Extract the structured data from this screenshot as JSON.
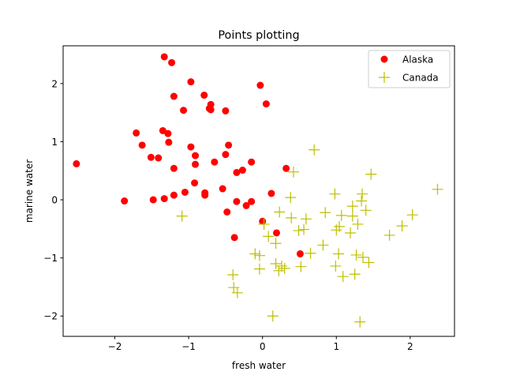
{
  "chart_data": {
    "type": "scatter",
    "title": "Points plotting",
    "xlabel": "fresh water",
    "ylabel": "marine water",
    "xlim": [
      -2.7,
      2.6
    ],
    "ylim": [
      -2.35,
      2.65
    ],
    "xticks": [
      -2,
      -1,
      0,
      1,
      2
    ],
    "yticks": [
      -2,
      -1,
      0,
      1,
      2
    ],
    "grid": false,
    "legend_position": "top-right",
    "series": [
      {
        "name": "Alaska",
        "marker": "circle",
        "color": "#ff0000",
        "points": [
          [
            -2.52,
            0.62
          ],
          [
            -1.87,
            -0.02
          ],
          [
            -1.71,
            1.15
          ],
          [
            -1.63,
            0.94
          ],
          [
            -1.51,
            0.73
          ],
          [
            -1.48,
            0.0
          ],
          [
            -1.41,
            0.72
          ],
          [
            -1.35,
            1.19
          ],
          [
            -1.33,
            2.46
          ],
          [
            -1.33,
            0.02
          ],
          [
            -1.28,
            1.14
          ],
          [
            -1.27,
            0.99
          ],
          [
            -1.23,
            2.36
          ],
          [
            -1.2,
            0.54
          ],
          [
            -1.2,
            1.78
          ],
          [
            -1.2,
            0.08
          ],
          [
            -1.07,
            1.54
          ],
          [
            -1.05,
            0.13
          ],
          [
            -0.97,
            2.03
          ],
          [
            -0.97,
            0.91
          ],
          [
            -0.92,
            0.29
          ],
          [
            -0.91,
            0.76
          ],
          [
            -0.91,
            0.61
          ],
          [
            -0.79,
            1.8
          ],
          [
            -0.78,
            0.12
          ],
          [
            -0.78,
            0.08
          ],
          [
            -0.72,
            1.57
          ],
          [
            -0.7,
            1.64
          ],
          [
            -0.7,
            1.55
          ],
          [
            -0.65,
            0.65
          ],
          [
            -0.54,
            0.19
          ],
          [
            -0.5,
            1.53
          ],
          [
            -0.5,
            0.78
          ],
          [
            -0.48,
            -0.21
          ],
          [
            -0.46,
            0.94
          ],
          [
            -0.38,
            -0.65
          ],
          [
            -0.35,
            0.47
          ],
          [
            -0.35,
            -0.03
          ],
          [
            -0.27,
            0.51
          ],
          [
            -0.22,
            -0.1
          ],
          [
            -0.15,
            0.65
          ],
          [
            -0.15,
            -0.03
          ],
          [
            -0.03,
            1.97
          ],
          [
            0.0,
            -0.37
          ],
          [
            0.05,
            1.65
          ],
          [
            0.12,
            0.11
          ],
          [
            0.19,
            -0.57
          ],
          [
            0.32,
            0.54
          ],
          [
            0.51,
            -0.93
          ]
        ]
      },
      {
        "name": "Canada",
        "marker": "plus",
        "color": "#bfbf00",
        "points": [
          [
            -1.09,
            -0.28
          ],
          [
            -0.4,
            -1.29
          ],
          [
            -0.39,
            -1.51
          ],
          [
            -0.34,
            -1.6
          ],
          [
            -0.1,
            -0.93
          ],
          [
            -0.04,
            -0.96
          ],
          [
            -0.04,
            -1.19
          ],
          [
            0.02,
            -0.42
          ],
          [
            0.08,
            -0.63
          ],
          [
            0.14,
            -2.0
          ],
          [
            0.18,
            -0.75
          ],
          [
            0.18,
            -1.1
          ],
          [
            0.22,
            -1.22
          ],
          [
            0.23,
            -0.21
          ],
          [
            0.26,
            -1.14
          ],
          [
            0.3,
            -1.18
          ],
          [
            0.38,
            0.04
          ],
          [
            0.39,
            -0.31
          ],
          [
            0.42,
            0.48
          ],
          [
            0.49,
            -0.53
          ],
          [
            0.52,
            -1.15
          ],
          [
            0.56,
            -0.51
          ],
          [
            0.59,
            -0.33
          ],
          [
            0.65,
            -0.92
          ],
          [
            0.7,
            0.86
          ],
          [
            0.82,
            -0.78
          ],
          [
            0.85,
            -0.22
          ],
          [
            0.98,
            0.1
          ],
          [
            0.99,
            -1.14
          ],
          [
            1.0,
            -0.52
          ],
          [
            1.03,
            -0.93
          ],
          [
            1.04,
            -0.46
          ],
          [
            1.07,
            -0.27
          ],
          [
            1.09,
            -1.32
          ],
          [
            1.19,
            -0.57
          ],
          [
            1.22,
            -0.28
          ],
          [
            1.22,
            -0.11
          ],
          [
            1.25,
            -1.28
          ],
          [
            1.27,
            -0.95
          ],
          [
            1.29,
            -0.42
          ],
          [
            1.32,
            -2.1
          ],
          [
            1.34,
            -0.02
          ],
          [
            1.35,
            0.1
          ],
          [
            1.36,
            -0.99
          ],
          [
            1.4,
            -0.18
          ],
          [
            1.44,
            -1.08
          ],
          [
            1.47,
            0.44
          ],
          [
            1.72,
            -0.61
          ],
          [
            1.89,
            -0.45
          ],
          [
            2.03,
            -0.26
          ],
          [
            2.37,
            0.18
          ]
        ]
      }
    ]
  }
}
